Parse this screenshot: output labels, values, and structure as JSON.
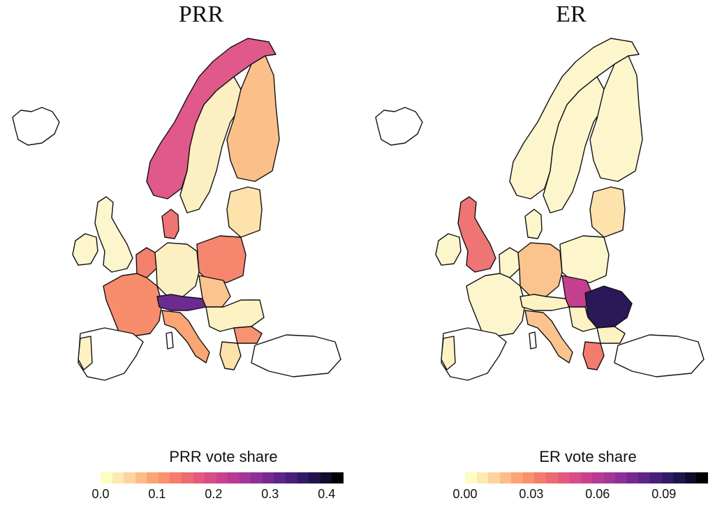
{
  "panels": [
    {
      "title": "PRR",
      "legend_title": "PRR vote share",
      "ticks": [
        "0.0",
        "0.1",
        "0.2",
        "0.3",
        "0.4"
      ],
      "tick_values": [
        0.0,
        0.1,
        0.2,
        0.3,
        0.4
      ],
      "scale_max": 0.43
    },
    {
      "title": "ER",
      "legend_title": "ER vote share",
      "ticks": [
        "0.00",
        "0.03",
        "0.06",
        "0.09"
      ],
      "tick_values": [
        0.0,
        0.03,
        0.06,
        0.09
      ],
      "scale_max": 0.11
    }
  ],
  "palette": [
    "#fcfdbf",
    "#fce9b4",
    "#fdd4a0",
    "#fdbd86",
    "#fba575",
    "#f8916e",
    "#f47c6c",
    "#ec6b72",
    "#e45a7c",
    "#d84d86",
    "#c9428e",
    "#b73a93",
    "#a33596",
    "#8c2f96",
    "#752991",
    "#5e2488",
    "#481f7a",
    "#331a66",
    "#20144d",
    "#0f0d2e",
    "#000004"
  ]
}
